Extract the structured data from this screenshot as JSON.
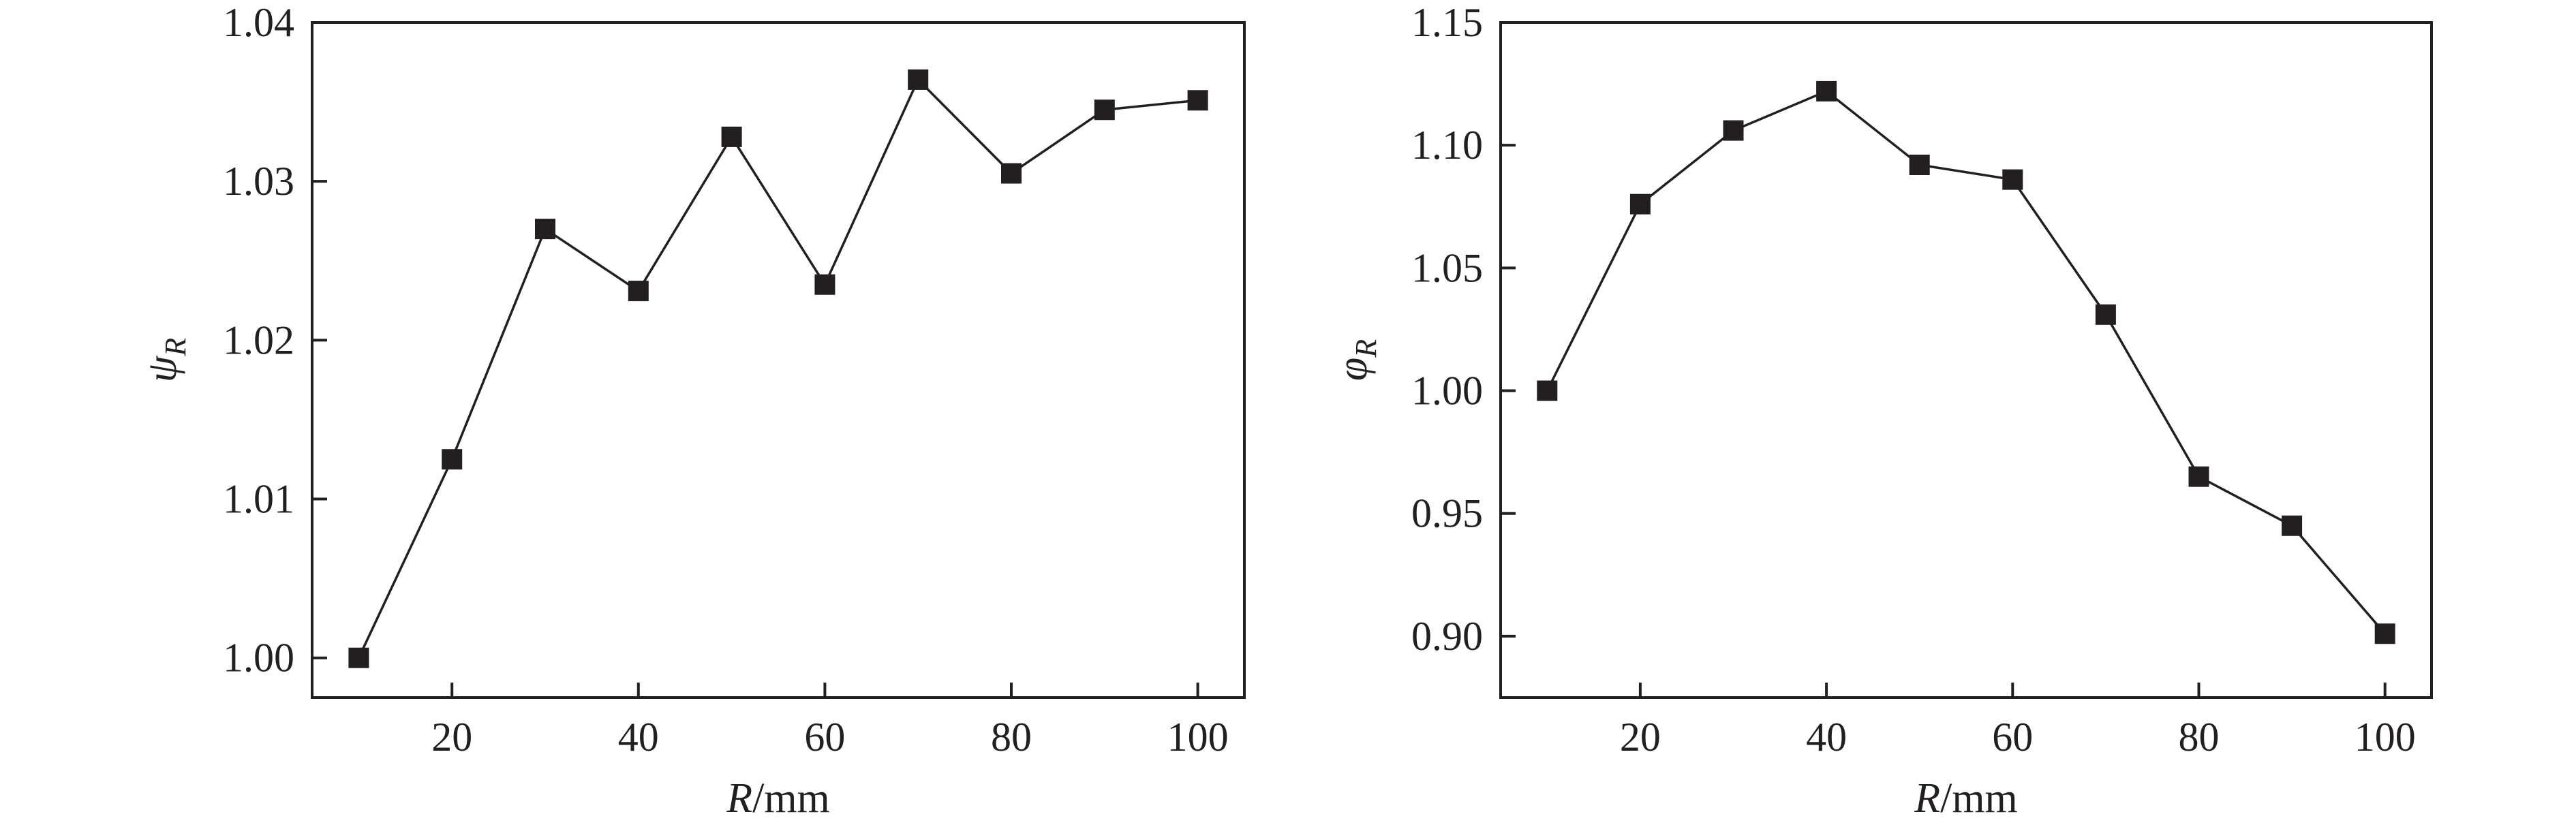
{
  "chart_data": [
    {
      "type": "line",
      "marker": "square",
      "colors": {
        "line": "#231f20",
        "marker": "#231f20"
      },
      "xlabel": {
        "var": "R",
        "unit": "/mm"
      },
      "ylabel": {
        "var": "ψ",
        "sub": "R"
      },
      "xlim": [
        5,
        105
      ],
      "ylim": [
        0.9975,
        1.04
      ],
      "xticks": [
        20,
        40,
        60,
        80,
        100
      ],
      "xtick_labels": [
        "20",
        "40",
        "60",
        "80",
        "100"
      ],
      "yticks": [
        1.0,
        1.01,
        1.02,
        1.03,
        1.04
      ],
      "ytick_labels": [
        "1.00",
        "1.01",
        "1.02",
        "1.03",
        "1.04"
      ],
      "grid": false,
      "x": [
        10,
        20,
        30,
        40,
        50,
        60,
        70,
        80,
        90,
        100
      ],
      "y": [
        1.0,
        1.0125,
        1.027,
        1.0231,
        1.0328,
        1.0235,
        1.0364,
        1.0305,
        1.0345,
        1.0351
      ]
    },
    {
      "type": "line",
      "marker": "square",
      "colors": {
        "line": "#231f20",
        "marker": "#231f20"
      },
      "xlabel": {
        "var": "R",
        "unit": "/mm"
      },
      "ylabel": {
        "var": "φ",
        "sub": "R"
      },
      "xlim": [
        5,
        105
      ],
      "ylim": [
        0.875,
        1.15
      ],
      "xticks": [
        20,
        40,
        60,
        80,
        100
      ],
      "xtick_labels": [
        "20",
        "40",
        "60",
        "80",
        "100"
      ],
      "yticks": [
        0.9,
        0.95,
        1.0,
        1.05,
        1.1,
        1.15
      ],
      "ytick_labels": [
        "0.90",
        "0.95",
        "1.00",
        "1.05",
        "1.10",
        "1.15"
      ],
      "grid": false,
      "x": [
        10,
        20,
        30,
        40,
        50,
        60,
        70,
        80,
        90,
        100
      ],
      "y": [
        1.0,
        1.076,
        1.106,
        1.122,
        1.092,
        1.086,
        1.031,
        0.965,
        0.945,
        0.901
      ]
    }
  ]
}
